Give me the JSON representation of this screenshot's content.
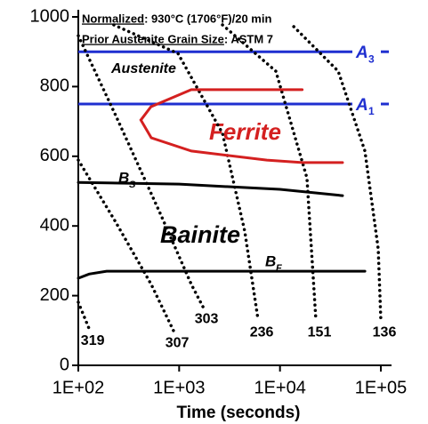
{
  "chart_data": {
    "type": "line",
    "xscale": "log",
    "xlabel": "Time (seconds)",
    "notes": [
      {
        "label": "Normalized",
        "text": ": 930°C (1706°F)/20 min"
      },
      {
        "label": "Prior Austenite Grain Size",
        "text": ": ASTM 7"
      }
    ],
    "annotations": {
      "austenite": "Austenite",
      "bainite": "Bainite"
    },
    "xlim": [
      100,
      100000
    ],
    "xticks": [
      {
        "value": 100,
        "label": "1E+02"
      },
      {
        "value": 1000,
        "label": "1E+03"
      },
      {
        "value": 10000,
        "label": "1E+04"
      },
      {
        "value": 100000,
        "label": "1E+05"
      }
    ],
    "ylim": [
      0,
      1000
    ],
    "yticks": [
      0,
      200,
      400,
      600,
      800,
      1000
    ],
    "hlines": [
      {
        "label": "A",
        "sub": "3",
        "value": 900,
        "color": "#1f2fd0"
      },
      {
        "label": "A",
        "sub": "1",
        "value": 750,
        "color": "#1f2fd0"
      }
    ],
    "series": [
      {
        "name": "319",
        "color": "#000",
        "style": "dotted",
        "x": [
          100,
          128
        ],
        "values": [
          181,
          105
        ]
      },
      {
        "name": "307",
        "color": "#000",
        "style": "dotted",
        "x": [
          100,
          235,
          529,
          880
        ],
        "values": [
          589,
          411,
          232,
          99
        ]
      },
      {
        "name": "303",
        "color": "#000",
        "style": "dotted",
        "x": [
          100,
          235,
          649,
          1322,
          1722
        ],
        "values": [
          946,
          717,
          436,
          232,
          168
        ]
      },
      {
        "name": "236",
        "color": "#000",
        "style": "dotted",
        "x": [
          225,
          974,
          2690,
          4470,
          6070
        ],
        "values": [
          977,
          895,
          666,
          385,
          130
        ]
      },
      {
        "name": "151",
        "color": "#000",
        "style": "dotted",
        "x": [
          2690,
          9100,
          18500,
          22700
        ],
        "values": [
          977,
          844,
          538,
          130
        ]
      },
      {
        "name": "136",
        "color": "#000",
        "style": "dotted",
        "x": [
          13700,
          37800,
          69500,
          94200,
          100000
        ],
        "values": [
          972,
          844,
          615,
          334,
          130
        ]
      },
      {
        "name": "Ferrite",
        "color": "#d42020",
        "style": "solid",
        "x": [
          16600,
          1318,
          525,
          417,
          529,
          1322,
          7400,
          16600,
          41700
        ],
        "values": [
          791,
          791,
          742,
          704,
          653,
          615,
          589,
          582,
          582
        ]
      },
      {
        "name": "B",
        "sub": "S",
        "color": "#000",
        "style": "solid",
        "x": [
          100,
          1000,
          10000,
          41700
        ],
        "values": [
          525,
          520,
          505,
          487
        ]
      },
      {
        "name": "B",
        "sub": "F",
        "color": "#000",
        "style": "solid",
        "x": [
          100,
          128,
          191,
          1000,
          10000,
          69500
        ],
        "values": [
          250,
          262,
          270,
          270,
          270,
          270
        ]
      }
    ]
  }
}
